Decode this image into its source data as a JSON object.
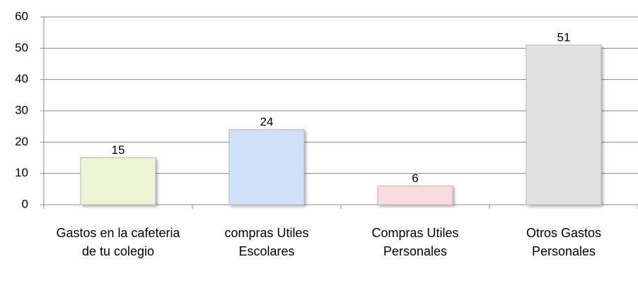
{
  "chart_data": {
    "type": "bar",
    "categories": [
      "Gastos en la cafeteria de tu colegio",
      "compras Utiles Escolares",
      "Compras Utiles Personales",
      "Otros Gastos Personales"
    ],
    "values": [
      15,
      24,
      6,
      51
    ],
    "colors": [
      "#eef4d6",
      "#cfe1fa",
      "#f6dcdc",
      "#e2e2e2"
    ],
    "ylim": [
      0,
      60
    ],
    "yticks": [
      0,
      10,
      20,
      30,
      40,
      50,
      60
    ],
    "grid": true
  }
}
